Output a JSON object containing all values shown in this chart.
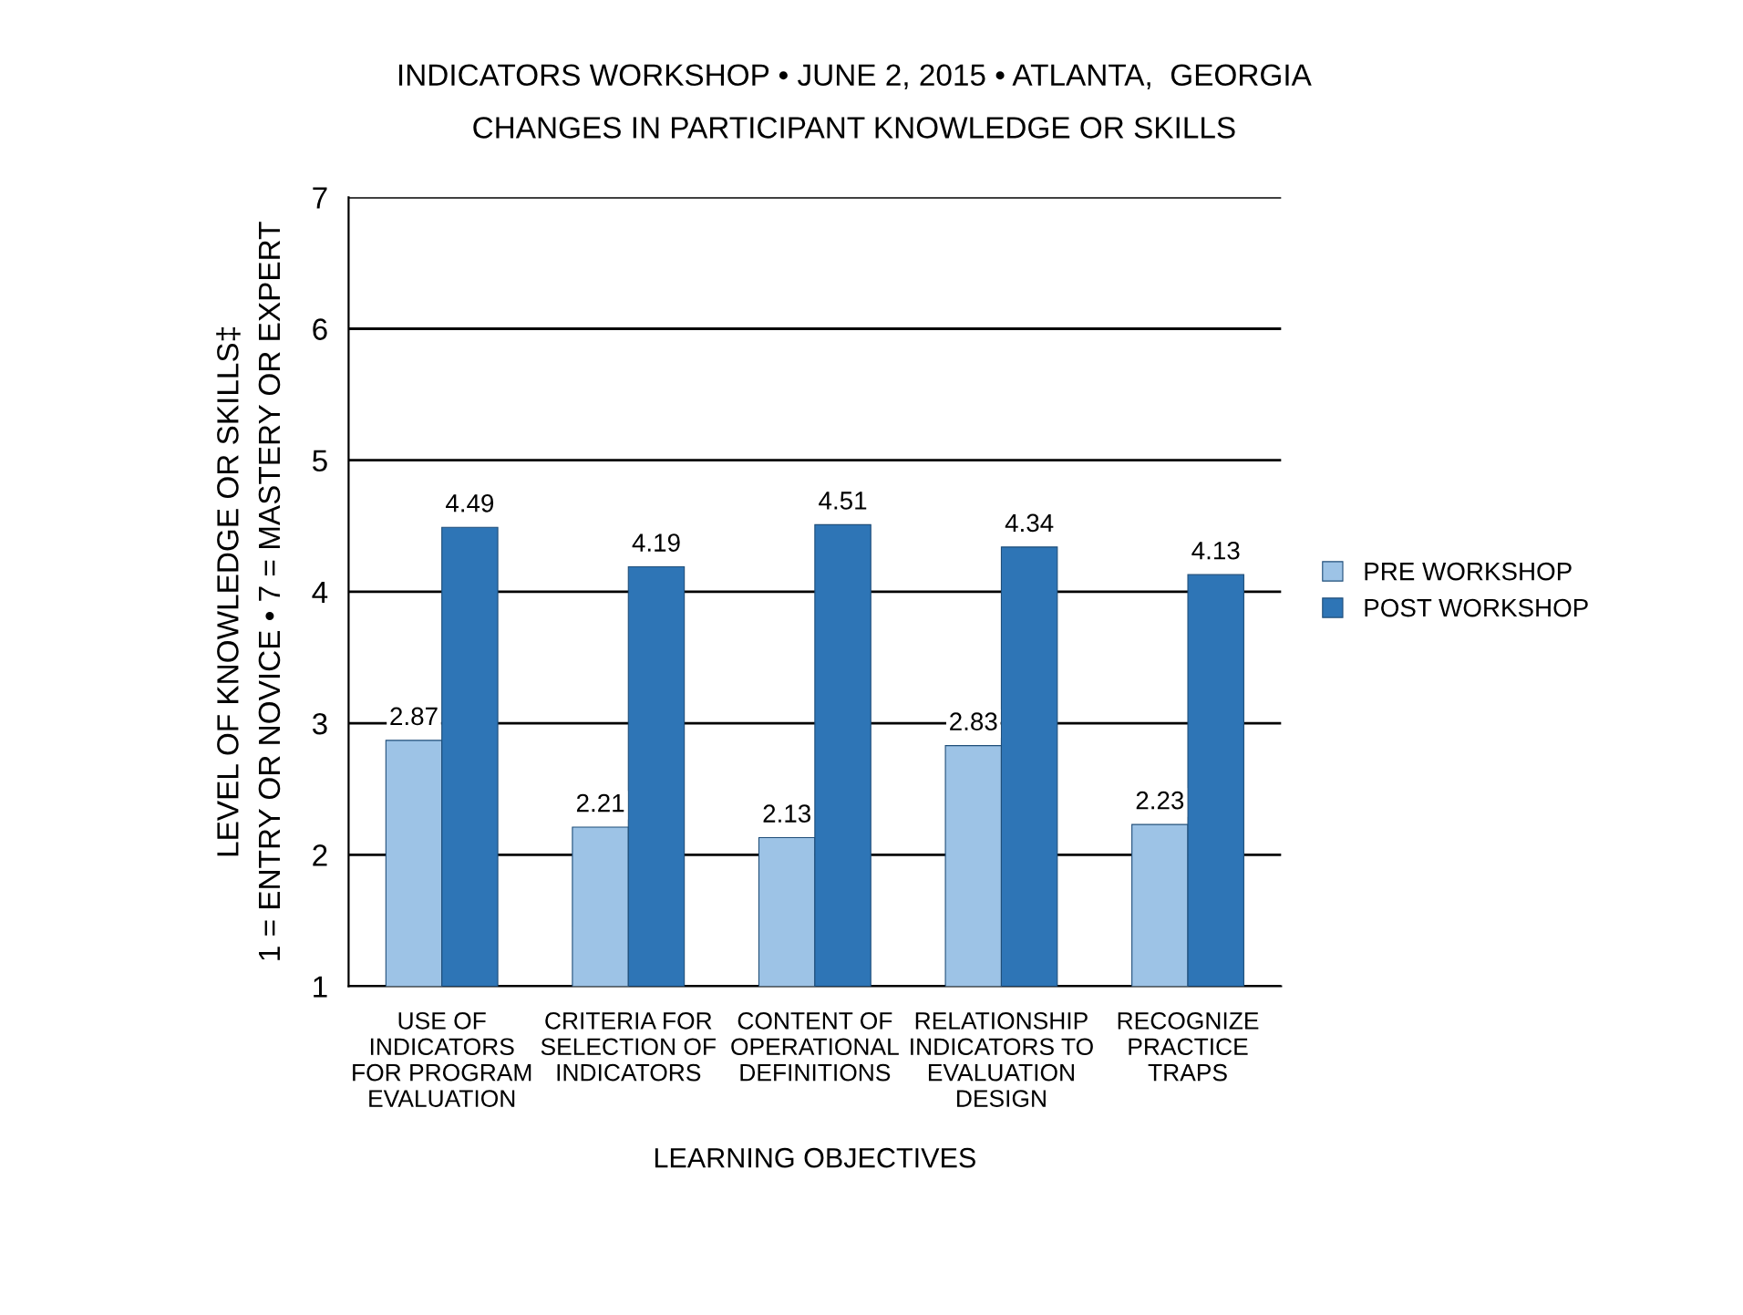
{
  "chart_data": {
    "type": "bar",
    "title": "INDICATORS WORKSHOP • JUNE 2, 2015 • ATLANTA,  GEORGIA",
    "subtitle": "CHANGES IN PARTICIPANT KNOWLEDGE OR SKILLS",
    "xlabel": "LEARNING OBJECTIVES",
    "ylabel": "LEVEL OF KNOWLEDGE OR SKILLS‡\n1 = ENTRY OR NOVICE • 7 = MASTERY OR EXPERT",
    "categories": [
      "USE OF\nINDICATORS\nFOR PROGRAM\nEVALUATION",
      "CRITERIA FOR\nSELECTION OF\nINDICATORS",
      "CONTENT OF\nOPERATIONAL\nDEFINITIONS",
      "RELATIONSHIP\nINDICATORS TO\nEVALUATION\nDESIGN",
      "RECOGNIZE\nPRACTICE\nTRAPS"
    ],
    "series": [
      {
        "name": "PRE WORKSHOP",
        "color": "#9dc3e6",
        "values": [
          2.87,
          2.21,
          2.13,
          2.83,
          2.23
        ]
      },
      {
        "name": "POST WORKSHOP",
        "color": "#2e75b6",
        "values": [
          4.49,
          4.19,
          4.51,
          4.34,
          4.13
        ]
      }
    ],
    "ylim": [
      1,
      7
    ],
    "yticks": [
      1,
      2,
      3,
      4,
      5,
      6,
      7
    ],
    "grid": "y",
    "legend": "right",
    "data_labels": true
  }
}
